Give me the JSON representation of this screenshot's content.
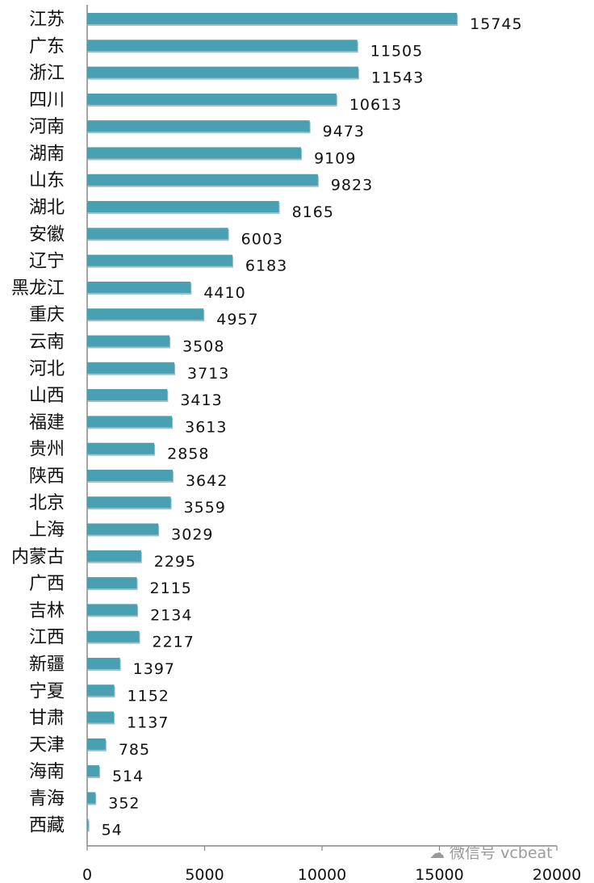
{
  "chart_data": {
    "type": "bar",
    "orientation": "horizontal",
    "categories": [
      "江苏",
      "广东",
      "浙江",
      "四川",
      "河南",
      "湖南",
      "山东",
      "湖北",
      "安徽",
      "辽宁",
      "黑龙江",
      "重庆",
      "云南",
      "河北",
      "山西",
      "福建",
      "贵州",
      "陕西",
      "北京",
      "上海",
      "内蒙古",
      "广西",
      "吉林",
      "江西",
      "新疆",
      "宁夏",
      "甘肃",
      "天津",
      "海南",
      "青海",
      "西藏"
    ],
    "values": [
      15745,
      11505,
      11543,
      10613,
      9473,
      9109,
      9823,
      8165,
      6003,
      6183,
      4410,
      4957,
      3508,
      3713,
      3413,
      3613,
      2858,
      3642,
      3559,
      3029,
      2295,
      2115,
      2134,
      2217,
      1397,
      1152,
      1137,
      785,
      514,
      352,
      54
    ],
    "xlim": [
      0,
      20000
    ],
    "xticks": [
      "0",
      "5000",
      "10000",
      "15000",
      "20000"
    ],
    "grid": false,
    "bar_color": "#4aa0b3",
    "bar_shadow": "#2f6f7e"
  },
  "watermark": {
    "icon": "wechat-icon",
    "text": "微信号 vcbeat"
  }
}
